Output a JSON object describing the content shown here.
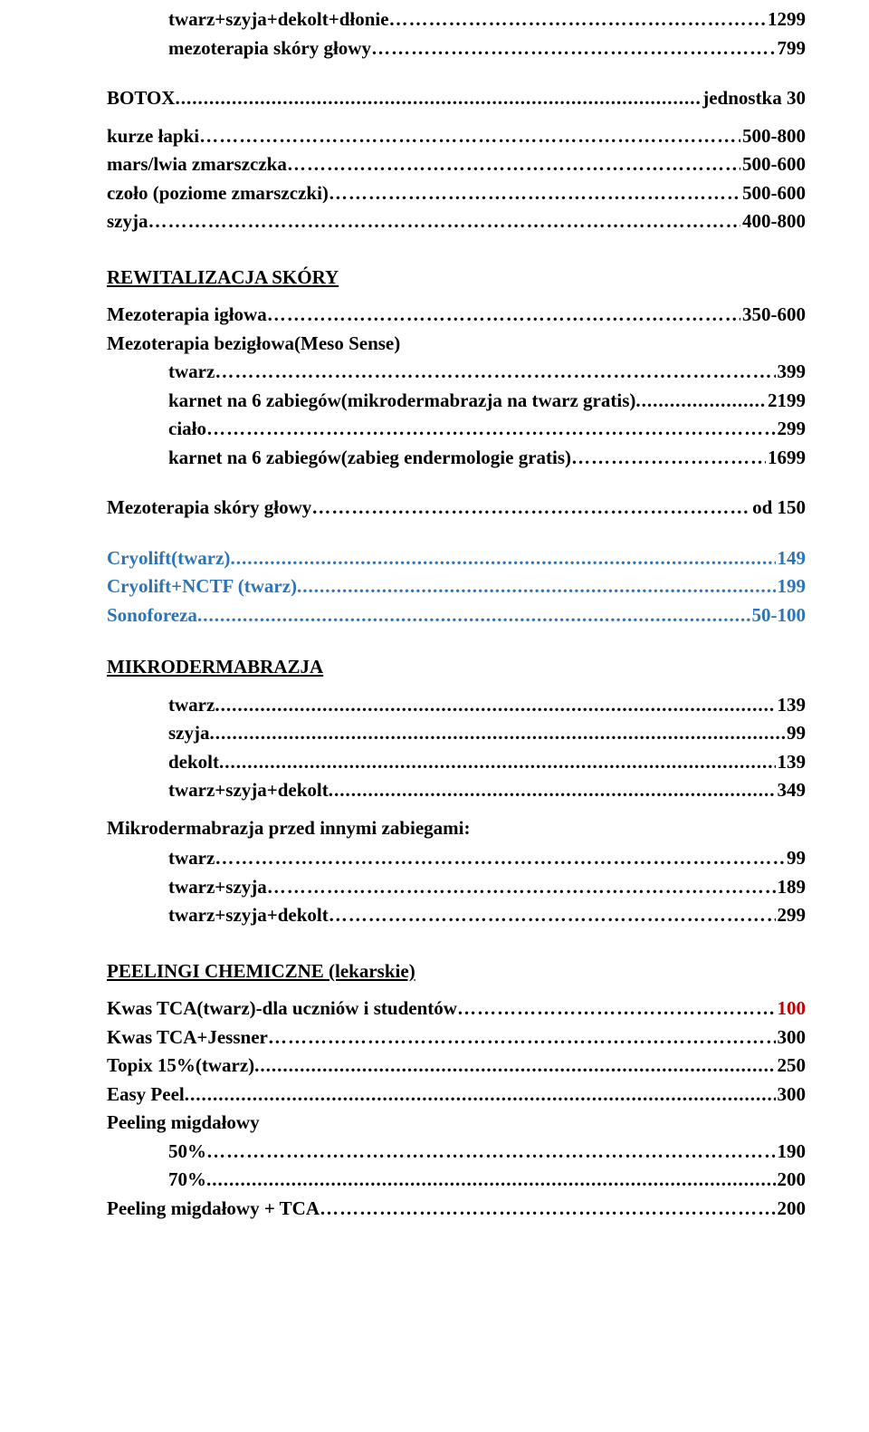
{
  "colors": {
    "text": "#000000",
    "blue": "#2e74b5",
    "red": "#c00000",
    "background": "#ffffff"
  },
  "typography": {
    "font_family": "Times New Roman",
    "font_size_pt": 16,
    "font_weight": "bold"
  },
  "top_items": [
    {
      "label": "twarz+szyja+dekolt+dłonie",
      "val": " 1299",
      "indent": true
    },
    {
      "label": "mezoterapia skóry głowy",
      "val": "799",
      "indent": true
    }
  ],
  "botox": {
    "heading_label": "BOTOX",
    "heading_val": " jednostka 30",
    "items": [
      {
        "label": "kurze łapki",
        "val": " 500-800"
      },
      {
        "label": "mars/lwia zmarszczka",
        "val": "500-600"
      },
      {
        "label": "czoło (poziome zmarszczki)",
        "val": " 500-600"
      },
      {
        "label": "szyja",
        "val": " 400-800"
      }
    ]
  },
  "rewitalizacja": {
    "heading": "REWITALIZACJA SKÓRY",
    "items": [
      {
        "label": "Mezoterapia igłowa",
        "val": " 350-600"
      },
      {
        "label": "Mezoterapia bezigłowa(Meso Sense)"
      },
      {
        "label": "twarz",
        "val": "399",
        "indent": true
      },
      {
        "label": "karnet na 6 zabiegów(mikrodermabrazja na twarz gratis)",
        "val": "2199",
        "indent": true
      },
      {
        "label": "ciało",
        "val": "299",
        "indent": true
      },
      {
        "label": "karnet na 6 zabiegów(zabieg endermologie gratis)",
        "val": "1699",
        "indent": true
      }
    ],
    "after": [
      {
        "label": "Mezoterapia skóry głowy",
        "val": "od 150"
      }
    ],
    "blue_items": [
      {
        "label": "Cryolift(twarz)",
        "val": " 149"
      },
      {
        "label": "Cryolift+NCTF (twarz)",
        "val": " 199"
      },
      {
        "label": "Sonoforeza",
        "val": "50-100"
      }
    ]
  },
  "mikro": {
    "heading": "MIKRODERMABRAZJA",
    "items": [
      {
        "label": "twarz",
        "val": " 139",
        "indent": true
      },
      {
        "label": "szyja",
        "val": " 99",
        "indent": true
      },
      {
        "label": "dekolt",
        "val": " 139",
        "indent": true
      },
      {
        "label": "twarz+szyja+dekolt",
        "val": " 349",
        "indent": true
      }
    ],
    "subheading": "Mikrodermabrazja przed innymi zabiegami:",
    "sub_items": [
      {
        "label": "twarz",
        "val": " 99",
        "indent": true
      },
      {
        "label": "twarz+szyja",
        "val": " 189",
        "indent": true
      },
      {
        "label": "twarz+szyja+dekolt",
        "val": " 299",
        "indent": true
      }
    ]
  },
  "peelingi": {
    "heading": "PEELINGI CHEMICZNE (lekarskie)",
    "items": [
      {
        "label": "Kwas TCA(twarz)-dla uczniów i studentów",
        "val": " 100",
        "val_color": "red"
      },
      {
        "label": "Kwas TCA+Jessner",
        "val": "300"
      },
      {
        "label": "Topix 15%(twarz)",
        "val": "250"
      },
      {
        "label": "Easy Peel",
        "val": "300"
      },
      {
        "label": "Peeling migdałowy"
      },
      {
        "label": "50%",
        "val": "190",
        "indent": true
      },
      {
        "label": "70%",
        "val": " 200",
        "indent": true
      },
      {
        "label": "Peeling migdałowy + TCA",
        "val": "200"
      }
    ]
  },
  "dots": "………………………………………………………………………………………………………………………………………………",
  "dots2": ".................................................................................................................................................................."
}
